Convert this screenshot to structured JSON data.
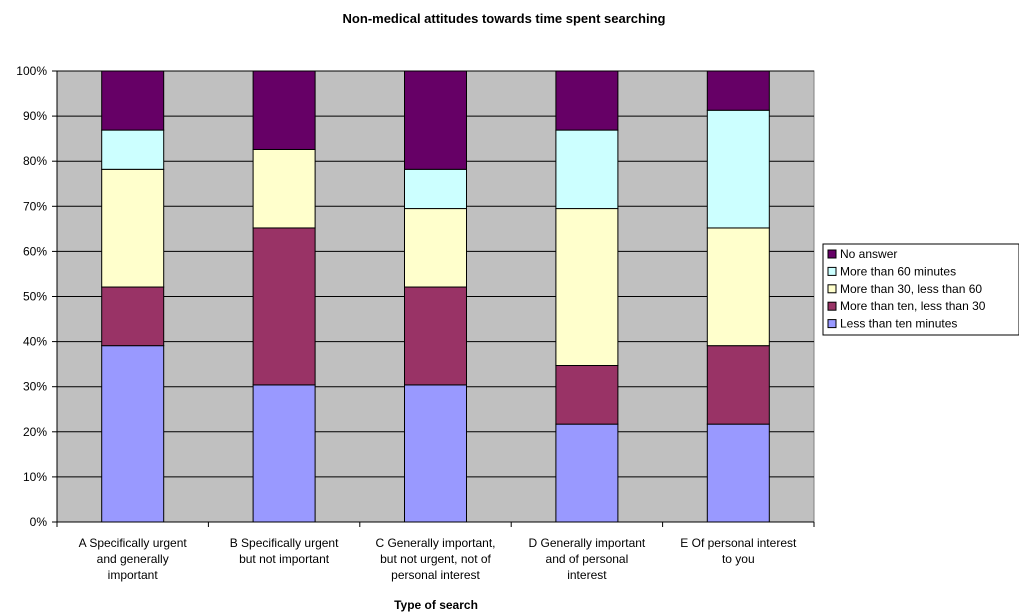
{
  "chart_data": {
    "type": "bar",
    "stacked": true,
    "percent": true,
    "title": "Non-medical attitudes towards time spent searching",
    "xlabel": "Type of search",
    "ylabel": "",
    "ylim": [
      0,
      100
    ],
    "y_ticks": [
      "0%",
      "10%",
      "20%",
      "30%",
      "40%",
      "50%",
      "60%",
      "70%",
      "80%",
      "90%",
      "100%"
    ],
    "grid": true,
    "plot_background": "#c0c0c0",
    "legend_position": "right",
    "categories": [
      [
        "A Specifically urgent",
        "and generally",
        "important"
      ],
      [
        "B Specifically urgent",
        "but not important"
      ],
      [
        "C Generally important,",
        "but not urgent, not of",
        "personal interest"
      ],
      [
        "D Generally important",
        "and of personal",
        "interest"
      ],
      [
        "E Of personal interest",
        "to you"
      ]
    ],
    "series": [
      {
        "name": "Less than ten minutes",
        "color": "#9999ff",
        "values": [
          39.1,
          30.4,
          30.4,
          21.7,
          21.7
        ]
      },
      {
        "name": "More than ten, less than 30",
        "color": "#993366",
        "values": [
          13.0,
          34.8,
          21.7,
          13.0,
          17.4
        ]
      },
      {
        "name": "More than 30, less than 60",
        "color": "#ffffcc",
        "values": [
          26.1,
          17.4,
          17.4,
          34.8,
          26.1
        ]
      },
      {
        "name": "More than 60 minutes",
        "color": "#ccffff",
        "values": [
          8.7,
          0,
          8.7,
          17.4,
          26.1
        ]
      },
      {
        "name": "No answer",
        "color": "#660066",
        "values": [
          13.1,
          17.4,
          21.8,
          13.1,
          8.7
        ]
      }
    ]
  }
}
